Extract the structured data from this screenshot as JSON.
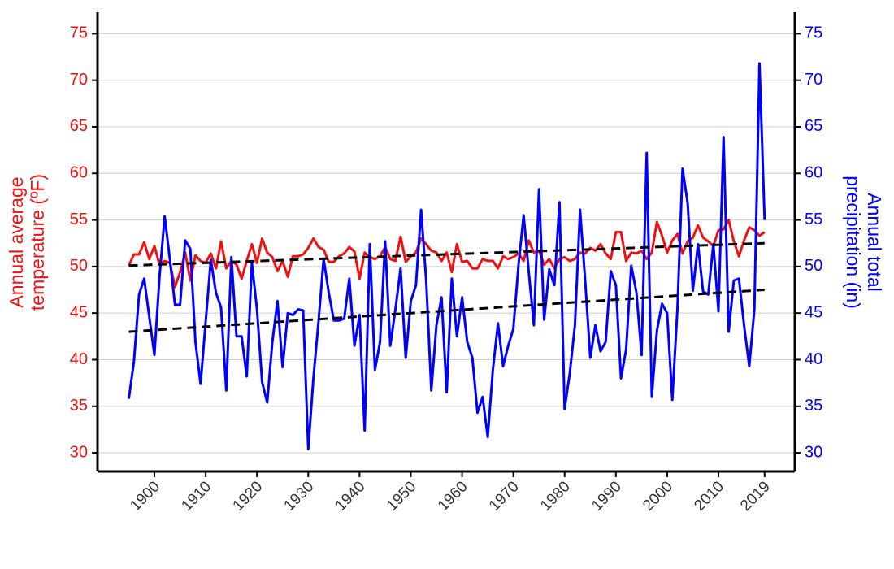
{
  "chart_data": {
    "type": "line",
    "ylabel": [
      "Annual average",
      "temperature (ºF)"
    ],
    "y2label": [
      "Annual total",
      "precipitation (in)"
    ],
    "x": [
      1895,
      1896,
      1897,
      1898,
      1899,
      1900,
      1901,
      1902,
      1903,
      1904,
      1905,
      1906,
      1907,
      1908,
      1909,
      1910,
      1911,
      1912,
      1913,
      1914,
      1915,
      1916,
      1917,
      1918,
      1919,
      1920,
      1921,
      1922,
      1923,
      1924,
      1925,
      1926,
      1927,
      1928,
      1929,
      1930,
      1931,
      1932,
      1933,
      1934,
      1935,
      1936,
      1937,
      1938,
      1939,
      1940,
      1941,
      1942,
      1943,
      1944,
      1945,
      1946,
      1947,
      1948,
      1949,
      1950,
      1951,
      1952,
      1953,
      1954,
      1955,
      1956,
      1957,
      1958,
      1959,
      1960,
      1961,
      1962,
      1963,
      1964,
      1965,
      1966,
      1967,
      1968,
      1969,
      1970,
      1971,
      1972,
      1973,
      1974,
      1975,
      1976,
      1977,
      1978,
      1979,
      1980,
      1981,
      1982,
      1983,
      1984,
      1985,
      1986,
      1987,
      1988,
      1989,
      1990,
      1991,
      1992,
      1993,
      1994,
      1995,
      1996,
      1997,
      1998,
      1999,
      2000,
      2001,
      2002,
      2003,
      2004,
      2005,
      2006,
      2007,
      2008,
      2009,
      2010,
      2011,
      2012,
      2013,
      2014,
      2015,
      2016,
      2017,
      2018,
      2019
    ],
    "series": [
      {
        "color": "#ee1111",
        "axis": "y",
        "values": [
          50.1,
          51.3,
          51.3,
          52.6,
          50.8,
          52.2,
          50.2,
          50.6,
          50.4,
          47.8,
          49.4,
          51.5,
          48.5,
          51.2,
          50.6,
          50.4,
          51.4,
          49.8,
          52.7,
          49.8,
          50.6,
          50.2,
          48.7,
          50.6,
          52.4,
          50.4,
          53.0,
          51.5,
          51.0,
          49.5,
          50.6,
          48.9,
          51.1,
          51.1,
          51.3,
          52.0,
          53.0,
          52.1,
          51.8,
          50.5,
          50.5,
          51.1,
          51.4,
          52.1,
          51.6,
          48.7,
          51.5,
          51.0,
          50.8,
          51.1,
          52.1,
          50.8,
          50.6,
          53.2,
          50.5,
          51.1,
          51.5,
          53.0,
          52.4,
          51.7,
          51.5,
          50.6,
          51.5,
          49.4,
          52.4,
          50.5,
          50.6,
          49.8,
          49.8,
          50.8,
          50.6,
          50.6,
          49.8,
          51.1,
          50.8,
          51.0,
          51.4,
          50.6,
          52.8,
          51.5,
          51.7,
          50.2,
          50.8,
          49.8,
          50.8,
          51.0,
          50.6,
          50.8,
          51.5,
          51.4,
          52.0,
          51.7,
          52.4,
          51.4,
          50.8,
          53.7,
          53.7,
          50.6,
          51.5,
          51.4,
          51.7,
          50.8,
          51.5,
          54.8,
          53.3,
          51.5,
          52.8,
          53.5,
          51.4,
          52.7,
          53.1,
          54.4,
          53.1,
          52.7,
          52.2,
          53.9,
          54.0,
          55.0,
          52.7,
          51.1,
          52.8,
          54.2,
          53.9,
          53.3,
          53.7
        ]
      },
      {
        "color": "#0000ff",
        "axis": "y2",
        "values": [
          35.8,
          39.8,
          47.0,
          48.7,
          44.6,
          40.5,
          48.9,
          55.4,
          50.8,
          45.9,
          45.9,
          52.8,
          51.9,
          41.9,
          37.4,
          44.1,
          50.7,
          47.2,
          45.6,
          36.7,
          51.0,
          42.5,
          42.5,
          38.2,
          50.4,
          45.4,
          37.6,
          35.4,
          41.9,
          46.3,
          39.2,
          45.0,
          44.8,
          45.4,
          45.3,
          30.4,
          38.0,
          44.1,
          50.8,
          47.2,
          44.2,
          44.2,
          44.4,
          48.7,
          41.5,
          44.8,
          32.4,
          52.4,
          38.9,
          41.9,
          52.7,
          41.5,
          45.4,
          49.8,
          40.2,
          46.3,
          48.0,
          56.1,
          48.5,
          36.7,
          43.7,
          46.7,
          36.5,
          48.7,
          42.5,
          46.7,
          41.9,
          40.2,
          34.3,
          36.0,
          31.7,
          38.9,
          43.9,
          39.3,
          41.5,
          43.3,
          50.2,
          55.5,
          49.4,
          43.7,
          58.3,
          44.3,
          49.7,
          48.0,
          56.9,
          34.7,
          38.5,
          43.7,
          56.1,
          48.5,
          40.2,
          43.7,
          40.9,
          41.9,
          49.5,
          48.0,
          38.0,
          41.1,
          50.1,
          47.2,
          40.5,
          62.2,
          36.0,
          43.1,
          46.0,
          45.0,
          35.7,
          45.4,
          60.5,
          56.8,
          47.4,
          52.4,
          47.3,
          47.0,
          52.4,
          45.2,
          63.9,
          43.0,
          48.5,
          48.7,
          43.7,
          39.3,
          45.4,
          71.8,
          55.0
        ]
      }
    ],
    "trend_lines": [
      {
        "axis": "y",
        "color": "#000000",
        "x": [
          1895,
          2019
        ],
        "values": [
          50.1,
          52.5
        ]
      },
      {
        "axis": "y2",
        "color": "#000000",
        "x": [
          1895,
          2019
        ],
        "values": [
          43.0,
          47.5
        ]
      }
    ],
    "xlim": [
      1888.9,
      2024.9
    ],
    "xticks": [
      1900,
      1910,
      1920,
      1930,
      1940,
      1950,
      1960,
      1970,
      1980,
      1990,
      2000,
      2010,
      2019
    ],
    "ylim": [
      28,
      77.3
    ],
    "yticks": [
      30,
      35,
      40,
      45,
      50,
      55,
      60,
      65,
      70,
      75
    ],
    "y2lim": [
      28,
      77.3
    ],
    "y2ticks": [
      30,
      35,
      40,
      45,
      50,
      55,
      60,
      65,
      70,
      75
    ],
    "grid": true
  }
}
